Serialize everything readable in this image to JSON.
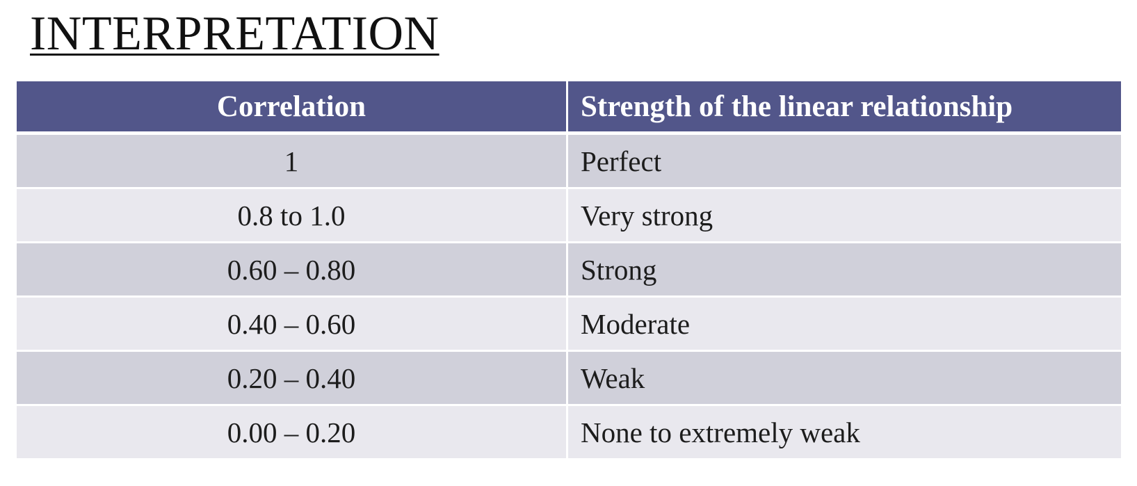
{
  "title": "INTERPRETATION",
  "table": {
    "headers": [
      "Correlation",
      "Strength of  the linear relationship"
    ],
    "rows": [
      {
        "correlation": "1",
        "strength": "Perfect"
      },
      {
        "correlation": "0.8 to 1.0",
        "strength": "Very strong"
      },
      {
        "correlation": "0.60 – 0.80",
        "strength": "Strong"
      },
      {
        "correlation": "0.40 – 0.60",
        "strength": "Moderate"
      },
      {
        "correlation": "0.20 – 0.40",
        "strength": "Weak"
      },
      {
        "correlation": "0.00 – 0.20",
        "strength": "None to extremely weak"
      }
    ]
  },
  "colors": {
    "header_background": "#52568a",
    "row_dark": "#d0d0da",
    "row_light": "#e9e8ee"
  }
}
